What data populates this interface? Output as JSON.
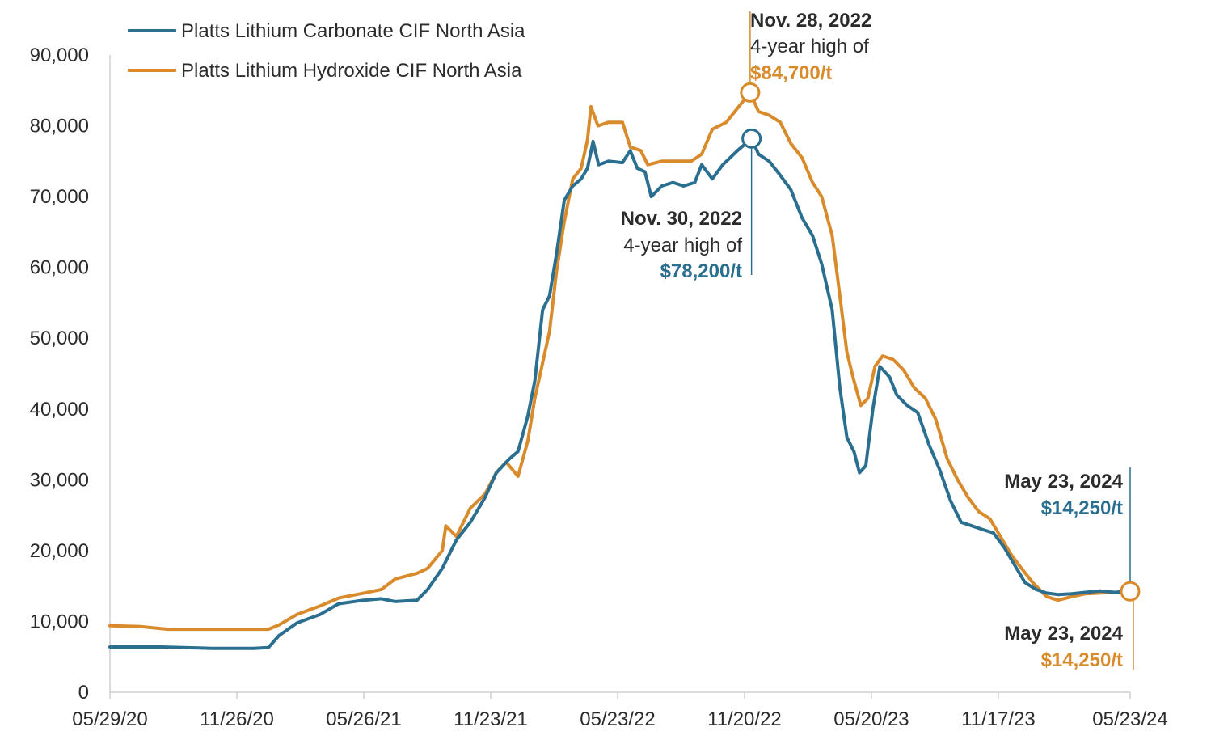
{
  "chart_data": {
    "type": "line",
    "title": "",
    "xlabel": "",
    "ylabel": "",
    "ylim": [
      0,
      90000
    ],
    "y_ticks": [
      0,
      10000,
      20000,
      30000,
      40000,
      50000,
      60000,
      70000,
      80000,
      90000
    ],
    "y_tick_labels": [
      "0",
      "10,000",
      "20,000",
      "30,000",
      "40,000",
      "50,000",
      "60,000",
      "70,000",
      "80,000",
      "90,000"
    ],
    "x_range": [
      "2020-05-29",
      "2024-05-23"
    ],
    "x_tick_dates": [
      "2020-05-29",
      "2020-11-26",
      "2021-05-26",
      "2021-11-23",
      "2022-05-23",
      "2022-11-20",
      "2023-05-20",
      "2023-11-17",
      "2024-05-23"
    ],
    "x_tick_labels": [
      "05/29/20",
      "11/26/20",
      "05/26/21",
      "11/23/21",
      "05/23/22",
      "11/20/22",
      "05/20/23",
      "11/17/23",
      "05/23/24"
    ],
    "grid": false,
    "legend_position": "top-left",
    "colors": {
      "carbonate": "#2a6f8f",
      "hydroxide": "#d98a2b",
      "text": "#2b2b2b",
      "axis": "#cfcfcf"
    },
    "series": [
      {
        "name": "Platts Lithium Carbonate CIF North Asia",
        "color": "#2a6f8f",
        "points": [
          [
            "2020-05-29",
            6400
          ],
          [
            "2020-08-10",
            6400
          ],
          [
            "2020-10-20",
            6200
          ],
          [
            "2020-12-20",
            6200
          ],
          [
            "2021-01-10",
            6300
          ],
          [
            "2021-01-25",
            8000
          ],
          [
            "2021-02-20",
            9800
          ],
          [
            "2021-03-25",
            11000
          ],
          [
            "2021-04-20",
            12500
          ],
          [
            "2021-05-26",
            13000
          ],
          [
            "2021-06-20",
            13200
          ],
          [
            "2021-07-10",
            12800
          ],
          [
            "2021-08-10",
            13000
          ],
          [
            "2021-08-25",
            14500
          ],
          [
            "2021-09-15",
            17500
          ],
          [
            "2021-10-05",
            21500
          ],
          [
            "2021-10-25",
            24000
          ],
          [
            "2021-11-15",
            27500
          ],
          [
            "2021-12-01",
            31000
          ],
          [
            "2021-12-20",
            33000
          ],
          [
            "2022-01-01",
            34000
          ],
          [
            "2022-01-15",
            39000
          ],
          [
            "2022-01-25",
            44000
          ],
          [
            "2022-02-05",
            54000
          ],
          [
            "2022-02-15",
            56000
          ],
          [
            "2022-02-25",
            62000
          ],
          [
            "2022-03-08",
            69500
          ],
          [
            "2022-03-20",
            71500
          ],
          [
            "2022-04-01",
            72500
          ],
          [
            "2022-04-10",
            74000
          ],
          [
            "2022-04-18",
            77800
          ],
          [
            "2022-04-26",
            74500
          ],
          [
            "2022-05-10",
            75000
          ],
          [
            "2022-05-30",
            74800
          ],
          [
            "2022-06-10",
            76500
          ],
          [
            "2022-06-20",
            74000
          ],
          [
            "2022-07-01",
            73500
          ],
          [
            "2022-07-10",
            70000
          ],
          [
            "2022-07-25",
            71500
          ],
          [
            "2022-08-10",
            72000
          ],
          [
            "2022-08-25",
            71500
          ],
          [
            "2022-09-10",
            72000
          ],
          [
            "2022-09-20",
            74500
          ],
          [
            "2022-10-05",
            72500
          ],
          [
            "2022-10-20",
            74500
          ],
          [
            "2022-11-10",
            76500
          ],
          [
            "2022-11-30",
            78200
          ],
          [
            "2022-12-10",
            76000
          ],
          [
            "2022-12-25",
            75000
          ],
          [
            "2023-01-10",
            73000
          ],
          [
            "2023-01-25",
            71000
          ],
          [
            "2023-02-10",
            67000
          ],
          [
            "2023-02-25",
            64500
          ],
          [
            "2023-03-10",
            60500
          ],
          [
            "2023-03-25",
            54000
          ],
          [
            "2023-04-05",
            43000
          ],
          [
            "2023-04-15",
            36000
          ],
          [
            "2023-04-25",
            34000
          ],
          [
            "2023-05-03",
            31000
          ],
          [
            "2023-05-12",
            32000
          ],
          [
            "2023-05-22",
            40000
          ],
          [
            "2023-06-01",
            46000
          ],
          [
            "2023-06-15",
            44500
          ],
          [
            "2023-06-25",
            42000
          ],
          [
            "2023-07-10",
            40500
          ],
          [
            "2023-07-25",
            39500
          ],
          [
            "2023-08-10",
            35000
          ],
          [
            "2023-08-25",
            31500
          ],
          [
            "2023-09-10",
            27000
          ],
          [
            "2023-09-25",
            24000
          ],
          [
            "2023-10-10",
            23500
          ],
          [
            "2023-10-25",
            23000
          ],
          [
            "2023-11-10",
            22500
          ],
          [
            "2023-11-25",
            20500
          ],
          [
            "2023-12-10",
            18000
          ],
          [
            "2023-12-25",
            15500
          ],
          [
            "2024-01-10",
            14500
          ],
          [
            "2024-01-25",
            14000
          ],
          [
            "2024-02-10",
            13800
          ],
          [
            "2024-03-01",
            13900
          ],
          [
            "2024-03-20",
            14100
          ],
          [
            "2024-04-10",
            14300
          ],
          [
            "2024-05-01",
            14100
          ],
          [
            "2024-05-23",
            14250
          ]
        ]
      },
      {
        "name": "Platts Lithium Hydroxide CIF North Asia",
        "color": "#d98a2b",
        "points": [
          [
            "2020-05-29",
            9400
          ],
          [
            "2020-07-10",
            9300
          ],
          [
            "2020-08-20",
            8900
          ],
          [
            "2020-11-26",
            8900
          ],
          [
            "2021-01-10",
            8900
          ],
          [
            "2021-01-25",
            9500
          ],
          [
            "2021-02-20",
            11000
          ],
          [
            "2021-03-25",
            12200
          ],
          [
            "2021-04-20",
            13300
          ],
          [
            "2021-05-26",
            14000
          ],
          [
            "2021-06-20",
            14500
          ],
          [
            "2021-07-10",
            16000
          ],
          [
            "2021-08-10",
            16800
          ],
          [
            "2021-08-25",
            17500
          ],
          [
            "2021-09-15",
            20000
          ],
          [
            "2021-09-20",
            23500
          ],
          [
            "2021-10-05",
            22000
          ],
          [
            "2021-10-25",
            26000
          ],
          [
            "2021-11-15",
            28000
          ],
          [
            "2021-12-01",
            31000
          ],
          [
            "2021-12-15",
            32500
          ],
          [
            "2022-01-01",
            30500
          ],
          [
            "2022-01-15",
            35500
          ],
          [
            "2022-01-25",
            41500
          ],
          [
            "2022-02-05",
            46500
          ],
          [
            "2022-02-15",
            51000
          ],
          [
            "2022-02-25",
            59500
          ],
          [
            "2022-03-08",
            66500
          ],
          [
            "2022-03-20",
            72500
          ],
          [
            "2022-04-01",
            74000
          ],
          [
            "2022-04-10",
            78000
          ],
          [
            "2022-04-15",
            82700
          ],
          [
            "2022-04-25",
            80000
          ],
          [
            "2022-05-10",
            80500
          ],
          [
            "2022-05-30",
            80500
          ],
          [
            "2022-06-10",
            77000
          ],
          [
            "2022-06-25",
            76500
          ],
          [
            "2022-07-05",
            74500
          ],
          [
            "2022-07-25",
            75000
          ],
          [
            "2022-08-15",
            75000
          ],
          [
            "2022-09-05",
            75000
          ],
          [
            "2022-09-20",
            76000
          ],
          [
            "2022-10-05",
            79500
          ],
          [
            "2022-10-25",
            80500
          ],
          [
            "2022-11-10",
            82500
          ],
          [
            "2022-11-28",
            84700
          ],
          [
            "2022-12-10",
            82000
          ],
          [
            "2022-12-25",
            81500
          ],
          [
            "2023-01-10",
            80500
          ],
          [
            "2023-01-25",
            77500
          ],
          [
            "2023-02-10",
            75500
          ],
          [
            "2023-02-25",
            72000
          ],
          [
            "2023-03-10",
            70000
          ],
          [
            "2023-03-25",
            64500
          ],
          [
            "2023-04-05",
            56000
          ],
          [
            "2023-04-15",
            48000
          ],
          [
            "2023-04-25",
            44000
          ],
          [
            "2023-05-05",
            40500
          ],
          [
            "2023-05-15",
            41500
          ],
          [
            "2023-05-25",
            46000
          ],
          [
            "2023-06-05",
            47500
          ],
          [
            "2023-06-20",
            47000
          ],
          [
            "2023-07-05",
            45500
          ],
          [
            "2023-07-20",
            43000
          ],
          [
            "2023-08-05",
            41500
          ],
          [
            "2023-08-20",
            38500
          ],
          [
            "2023-09-05",
            33000
          ],
          [
            "2023-09-20",
            30000
          ],
          [
            "2023-10-05",
            27500
          ],
          [
            "2023-10-20",
            25500
          ],
          [
            "2023-11-05",
            24500
          ],
          [
            "2023-11-20",
            22000
          ],
          [
            "2023-12-05",
            19500
          ],
          [
            "2023-12-20",
            17500
          ],
          [
            "2024-01-05",
            15500
          ],
          [
            "2024-01-25",
            13500
          ],
          [
            "2024-02-10",
            13000
          ],
          [
            "2024-03-01",
            13500
          ],
          [
            "2024-03-20",
            13900
          ],
          [
            "2024-04-10",
            14000
          ],
          [
            "2024-05-01",
            14100
          ],
          [
            "2024-05-23",
            14250
          ]
        ]
      }
    ],
    "annotations": [
      {
        "date_label": "Nov. 28, 2022",
        "line2": "4-year high of",
        "value_label": "$84,700/t",
        "series": 1,
        "date": "2022-11-28",
        "value": 84700
      },
      {
        "date_label": "Nov. 30, 2022",
        "line2": "4-year high of",
        "value_label": "$78,200/t",
        "series": 0,
        "date": "2022-11-30",
        "value": 78200
      },
      {
        "date_label": "May 23, 2024",
        "value_label": "$14,250/t",
        "series": 0,
        "date": "2024-05-23",
        "value": 14250
      },
      {
        "date_label": "May 23, 2024",
        "value_label": "$14,250/t",
        "series": 1,
        "date": "2024-05-23",
        "value": 14250
      }
    ]
  }
}
